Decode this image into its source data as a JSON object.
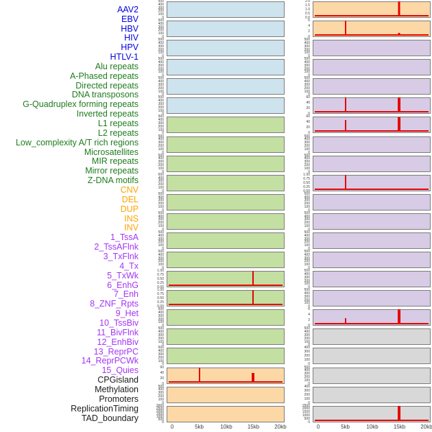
{
  "colors": {
    "red": "#e60000",
    "border": "#7a7a7a",
    "tick_text": "#3d3d3d",
    "bg": {
      "blue": "#cde3ee",
      "green": "#c3dfa2",
      "orange": "#fcd8a6",
      "purple": "#d7cbe5",
      "gray": "#d8d8d8"
    },
    "label": {
      "virus": "#0000e0",
      "repeat": "#1e7b1e",
      "sv": "#ffa200",
      "state": "#a335f2",
      "other": "#1a1a1a"
    }
  },
  "chart_data": {
    "type": "small-multiples-line",
    "description": "44 genomic feature tracks in two panels of 22 mini-plots; red signal vs position, flat unless noted",
    "x_axis": {
      "ticks": [
        "0",
        "5kb",
        "10kb",
        "15kb",
        "20kb"
      ],
      "range_kb": [
        0,
        20
      ]
    },
    "tracks": [
      {
        "label": "AAV2",
        "group": "virus",
        "panel": "left",
        "row": 0,
        "bg": "blue",
        "y_ticks": [
          "500",
          "400",
          "300",
          "200",
          "100",
          "0"
        ],
        "baseline": false,
        "spikes": []
      },
      {
        "label": "EBV",
        "group": "virus",
        "panel": "left",
        "row": 1,
        "bg": "blue",
        "y_ticks": [
          "500",
          "400",
          "300",
          "200",
          "100",
          "0"
        ],
        "baseline": false,
        "spikes": []
      },
      {
        "label": "HBV",
        "group": "virus",
        "panel": "left",
        "row": 2,
        "bg": "blue",
        "y_ticks": [
          "500",
          "400",
          "300",
          "200",
          "100",
          "0"
        ],
        "baseline": false,
        "spikes": []
      },
      {
        "label": "HIV",
        "group": "virus",
        "panel": "left",
        "row": 3,
        "bg": "blue",
        "y_ticks": [
          "500",
          "400",
          "300",
          "200",
          "100",
          "0"
        ],
        "baseline": false,
        "spikes": []
      },
      {
        "label": "HPV",
        "group": "virus",
        "panel": "left",
        "row": 4,
        "bg": "blue",
        "y_ticks": [
          "500",
          "400",
          "300",
          "200",
          "100",
          "0"
        ],
        "baseline": false,
        "spikes": []
      },
      {
        "label": "HTLV-1",
        "group": "virus",
        "panel": "left",
        "row": 5,
        "bg": "blue",
        "y_ticks": [
          "500",
          "400",
          "300",
          "200",
          "100",
          "0"
        ],
        "baseline": false,
        "spikes": []
      },
      {
        "label": "Alu repeats",
        "group": "repeat",
        "panel": "left",
        "row": 6,
        "bg": "green",
        "y_ticks": [
          "500",
          "400",
          "300",
          "200",
          "100",
          "0"
        ],
        "baseline": false,
        "spikes": []
      },
      {
        "label": "A-Phased repeats",
        "group": "repeat",
        "panel": "left",
        "row": 7,
        "bg": "green",
        "y_ticks": [
          "500",
          "400",
          "300",
          "200",
          "100",
          "0"
        ],
        "baseline": false,
        "spikes": []
      },
      {
        "label": "Directed repeats",
        "group": "repeat",
        "panel": "left",
        "row": 8,
        "bg": "green",
        "y_ticks": [
          "500",
          "400",
          "300",
          "200",
          "100",
          "0"
        ],
        "baseline": false,
        "spikes": []
      },
      {
        "label": "DNA transposons",
        "group": "repeat",
        "panel": "left",
        "row": 9,
        "bg": "green",
        "y_ticks": [
          "500",
          "400",
          "300",
          "200",
          "100",
          "0"
        ],
        "baseline": false,
        "spikes": []
      },
      {
        "label": "G-Quadruplex forming repeats",
        "group": "repeat",
        "panel": "left",
        "row": 10,
        "bg": "green",
        "y_ticks": [
          "500",
          "400",
          "300",
          "200",
          "100",
          "0"
        ],
        "baseline": false,
        "spikes": []
      },
      {
        "label": "Inverted repeats",
        "group": "repeat",
        "panel": "left",
        "row": 11,
        "bg": "green",
        "y_ticks": [
          "500",
          "400",
          "300",
          "200",
          "100",
          "0"
        ],
        "baseline": false,
        "spikes": []
      },
      {
        "label": "L1 repeats",
        "group": "repeat",
        "panel": "left",
        "row": 12,
        "bg": "green",
        "y_ticks": [
          "500",
          "400",
          "300",
          "200",
          "100",
          "0"
        ],
        "baseline": false,
        "spikes": []
      },
      {
        "label": "L2 repeats",
        "group": "repeat",
        "panel": "left",
        "row": 13,
        "bg": "green",
        "y_ticks": [
          "500",
          "400",
          "300",
          "200",
          "100",
          "0"
        ],
        "baseline": false,
        "spikes": []
      },
      {
        "label": "Low_complexity A/T rich regions",
        "group": "repeat",
        "panel": "left",
        "row": 14,
        "bg": "green",
        "y_ticks": [
          "1.00",
          "0.75",
          "0.50",
          "0.25",
          "0.00"
        ],
        "baseline": true,
        "spikes": [
          {
            "x_kb": 15,
            "h": 1.0,
            "w": 2,
            "value": 1.0
          }
        ]
      },
      {
        "label": "Microsatellites",
        "group": "repeat",
        "panel": "left",
        "row": 15,
        "bg": "green",
        "y_ticks": [
          "1.00",
          "0.75",
          "0.50",
          "0.25",
          "0.00"
        ],
        "baseline": true,
        "spikes": [
          {
            "x_kb": 15,
            "h": 1.0,
            "w": 2,
            "value": 1.0
          }
        ]
      },
      {
        "label": "MIR repeats",
        "group": "repeat",
        "panel": "left",
        "row": 16,
        "bg": "green",
        "y_ticks": [
          "500",
          "400",
          "300",
          "200",
          "100",
          "0"
        ],
        "baseline": false,
        "spikes": []
      },
      {
        "label": "Mirror repeats",
        "group": "repeat",
        "panel": "left",
        "row": 17,
        "bg": "green",
        "y_ticks": [
          "500",
          "400",
          "300",
          "200",
          "100",
          "0"
        ],
        "baseline": false,
        "spikes": []
      },
      {
        "label": "Z-DNA motifs",
        "group": "repeat",
        "panel": "left",
        "row": 18,
        "bg": "green",
        "y_ticks": [
          "500",
          "400",
          "300",
          "200",
          "100",
          "0"
        ],
        "baseline": false,
        "spikes": []
      },
      {
        "label": "CNV",
        "group": "sv",
        "panel": "left",
        "row": 19,
        "bg": "orange",
        "y_ticks": [
          "60",
          "40",
          "20",
          "0"
        ],
        "baseline": true,
        "spikes": [
          {
            "x_kb": 5,
            "h": 1.0,
            "w": 2,
            "value": 65
          },
          {
            "x_kb": 15,
            "h": 0.62,
            "w": 4,
            "value": 40
          }
        ]
      },
      {
        "label": "DEL",
        "group": "sv",
        "panel": "left",
        "row": 20,
        "bg": "orange",
        "y_ticks": [
          "500",
          "400",
          "300",
          "200",
          "100",
          "0"
        ],
        "baseline": false,
        "spikes": []
      },
      {
        "label": "DUP",
        "group": "sv",
        "panel": "left",
        "row": 21,
        "bg": "orange",
        "y_ticks": [
          "3000",
          "2500",
          "2000",
          "1500",
          "1000",
          "500",
          "0"
        ],
        "baseline": false,
        "spikes": []
      },
      {
        "label": "INS",
        "group": "sv",
        "panel": "right",
        "row": 0,
        "bg": "orange",
        "y_ticks": [
          "2.0",
          "1.5",
          "1.0",
          "0.5",
          "0.0"
        ],
        "baseline": true,
        "spikes": [
          {
            "x_kb": 15,
            "h": 1.0,
            "w": 3,
            "value": 2.1
          }
        ]
      },
      {
        "label": "INV",
        "group": "sv",
        "panel": "right",
        "row": 1,
        "bg": "orange",
        "y_ticks": [
          "6",
          "4",
          "2",
          "0"
        ],
        "baseline": true,
        "spikes": [
          {
            "x_kb": 5,
            "h": 1.0,
            "w": 2,
            "value": 6.3
          },
          {
            "x_kb": 15,
            "h": 0.17,
            "w": 3,
            "value": 1.0
          }
        ]
      },
      {
        "label": "1_TssA",
        "group": "state",
        "panel": "right",
        "row": 2,
        "bg": "purple",
        "y_ticks": [
          "500",
          "400",
          "300",
          "200",
          "100",
          "0"
        ],
        "baseline": false,
        "spikes": []
      },
      {
        "label": "2_TssAFlnk",
        "group": "state",
        "panel": "right",
        "row": 3,
        "bg": "purple",
        "y_ticks": [
          "500",
          "400",
          "300",
          "200",
          "100",
          "0"
        ],
        "baseline": false,
        "spikes": []
      },
      {
        "label": "3_TxFlnk",
        "group": "state",
        "panel": "right",
        "row": 4,
        "bg": "purple",
        "y_ticks": [
          "500",
          "400",
          "300",
          "200",
          "100",
          "0"
        ],
        "baseline": false,
        "spikes": []
      },
      {
        "label": "4_Tx",
        "group": "state",
        "panel": "right",
        "row": 5,
        "bg": "purple",
        "y_ticks": [
          "60",
          "40",
          "20",
          "0"
        ],
        "baseline": true,
        "spikes": [
          {
            "x_kb": 5,
            "h": 1.0,
            "w": 2,
            "value": 70
          },
          {
            "x_kb": 15,
            "h": 1.0,
            "w": 4,
            "value": 70
          }
        ]
      },
      {
        "label": "5_TxWk",
        "group": "state",
        "panel": "right",
        "row": 6,
        "bg": "purple",
        "y_ticks": [
          "60",
          "40",
          "20",
          "0"
        ],
        "baseline": true,
        "spikes": [
          {
            "x_kb": 5,
            "h": 0.78,
            "w": 2,
            "value": 50
          },
          {
            "x_kb": 15,
            "h": 0.95,
            "w": 4,
            "value": 62
          }
        ]
      },
      {
        "label": "6_EnhG",
        "group": "state",
        "panel": "right",
        "row": 7,
        "bg": "purple",
        "y_ticks": [
          "500",
          "400",
          "300",
          "200",
          "100",
          "0"
        ],
        "baseline": false,
        "spikes": []
      },
      {
        "label": "7_Enh",
        "group": "state",
        "panel": "right",
        "row": 8,
        "bg": "purple",
        "y_ticks": [
          "500",
          "400",
          "300",
          "200",
          "100",
          "0"
        ],
        "baseline": false,
        "spikes": []
      },
      {
        "label": "8_ZNF_Rpts",
        "group": "state",
        "panel": "right",
        "row": 9,
        "bg": "purple",
        "y_ticks": [
          "1.00",
          "0.75",
          "0.50",
          "0.25",
          "0.00"
        ],
        "baseline": true,
        "spikes": [
          {
            "x_kb": 5,
            "h": 1.0,
            "w": 2,
            "value": 1.0
          }
        ]
      },
      {
        "label": "9_Het",
        "group": "state",
        "panel": "right",
        "row": 10,
        "bg": "purple",
        "y_ticks": [
          "500",
          "400",
          "300",
          "200",
          "100",
          "0"
        ],
        "baseline": false,
        "spikes": []
      },
      {
        "label": "10_TssBiv",
        "group": "state",
        "panel": "right",
        "row": 11,
        "bg": "purple",
        "y_ticks": [
          "500",
          "400",
          "300",
          "200",
          "100",
          "0"
        ],
        "baseline": false,
        "spikes": []
      },
      {
        "label": "11_BivFlnk",
        "group": "state",
        "panel": "right",
        "row": 12,
        "bg": "purple",
        "y_ticks": [
          "500",
          "400",
          "300",
          "200",
          "100",
          "0"
        ],
        "baseline": false,
        "spikes": []
      },
      {
        "label": "12_EnhBiv",
        "group": "state",
        "panel": "right",
        "row": 13,
        "bg": "purple",
        "y_ticks": [
          "500",
          "400",
          "300",
          "200",
          "100",
          "0"
        ],
        "baseline": false,
        "spikes": []
      },
      {
        "label": "13_ReprPC",
        "group": "state",
        "panel": "right",
        "row": 14,
        "bg": "purple",
        "y_ticks": [
          "500",
          "400",
          "300",
          "200",
          "100",
          "0"
        ],
        "baseline": false,
        "spikes": []
      },
      {
        "label": "14_ReprPCWk",
        "group": "state",
        "panel": "right",
        "row": 15,
        "bg": "purple",
        "y_ticks": [
          "500",
          "400",
          "300",
          "200",
          "100",
          "0"
        ],
        "baseline": false,
        "spikes": []
      },
      {
        "label": "15_Quies",
        "group": "state",
        "panel": "right",
        "row": 16,
        "bg": "purple",
        "y_ticks": [
          "6",
          "4",
          "2",
          "0"
        ],
        "baseline": true,
        "spikes": [
          {
            "x_kb": 5,
            "h": 0.42,
            "w": 2,
            "value": 2.5
          },
          {
            "x_kb": 15,
            "h": 1.0,
            "w": 4,
            "value": 6.3
          }
        ]
      },
      {
        "label": "CPGisland",
        "group": "other",
        "panel": "right",
        "row": 17,
        "bg": "gray",
        "y_ticks": [
          "500",
          "400",
          "300",
          "200",
          "100",
          "0"
        ],
        "baseline": false,
        "spikes": []
      },
      {
        "label": "Methylation",
        "group": "other",
        "panel": "right",
        "row": 18,
        "bg": "gray",
        "y_ticks": [
          "400",
          "300",
          "200",
          "100",
          "0"
        ],
        "baseline": false,
        "spikes": []
      },
      {
        "label": "Promoters",
        "group": "other",
        "panel": "right",
        "row": 19,
        "bg": "gray",
        "y_ticks": [
          "500",
          "400",
          "300",
          "200",
          "100",
          "0"
        ],
        "baseline": false,
        "spikes": []
      },
      {
        "label": "ReplicationTiming",
        "group": "other",
        "panel": "right",
        "row": 20,
        "bg": "gray",
        "y_ticks": [
          "400",
          "300",
          "200",
          "100",
          "0"
        ],
        "baseline": false,
        "spikes": []
      },
      {
        "label": "TAD_boundary",
        "group": "other",
        "panel": "right",
        "row": 21,
        "bg": "gray",
        "y_ticks": [
          "2500",
          "2000",
          "1500",
          "1000",
          "500",
          "0"
        ],
        "baseline": true,
        "spikes": [
          {
            "x_kb": 15,
            "h": 1.0,
            "w": 4,
            "value": null
          }
        ]
      }
    ]
  }
}
